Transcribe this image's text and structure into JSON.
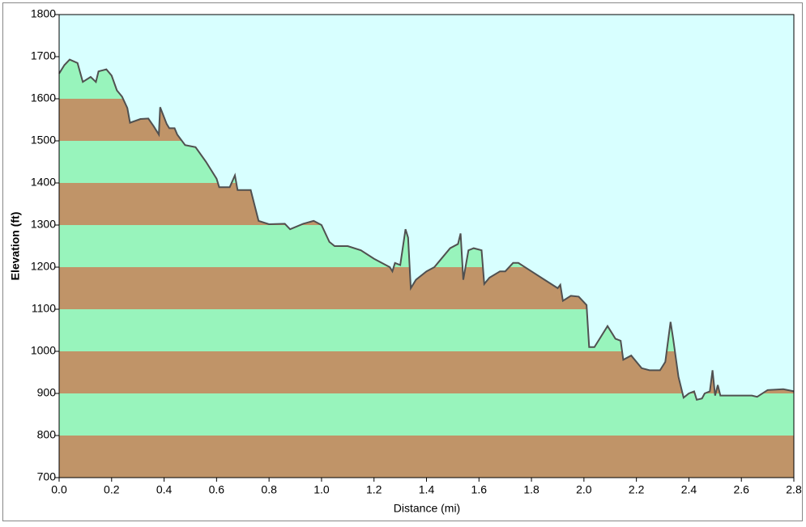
{
  "chart_data": {
    "type": "elevation-profile",
    "x_label": "Distance   (mi)",
    "y_label": "Elevation (ft)",
    "x": [
      0,
      0.02,
      0.04,
      0.07,
      0.09,
      0.12,
      0.14,
      0.15,
      0.18,
      0.2,
      0.22,
      0.24,
      0.26,
      0.27,
      0.31,
      0.34,
      0.36,
      0.38,
      0.385,
      0.41,
      0.42,
      0.44,
      0.45,
      0.48,
      0.52,
      0.56,
      0.6,
      0.61,
      0.65,
      0.67,
      0.68,
      0.73,
      0.76,
      0.8,
      0.86,
      0.88,
      0.93,
      0.97,
      1,
      1.03,
      1.05,
      1.1,
      1.15,
      1.2,
      1.26,
      1.27,
      1.28,
      1.3,
      1.32,
      1.33,
      1.34,
      1.36,
      1.4,
      1.43,
      1.45,
      1.49,
      1.52,
      1.53,
      1.54,
      1.56,
      1.58,
      1.61,
      1.62,
      1.64,
      1.68,
      1.7,
      1.73,
      1.75,
      1.8,
      1.85,
      1.9,
      1.91,
      1.92,
      1.95,
      1.98,
      2.01,
      2.02,
      2.04,
      2.06,
      2.09,
      2.11,
      2.12,
      2.14,
      2.15,
      2.18,
      2.22,
      2.25,
      2.29,
      2.31,
      2.33,
      2.34,
      2.36,
      2.38,
      2.4,
      2.42,
      2.43,
      2.45,
      2.46,
      2.48,
      2.49,
      2.5,
      2.51,
      2.52,
      2.6,
      2.64,
      2.66,
      2.7,
      2.76,
      2.8
    ],
    "values": [
      1660,
      1680,
      1693,
      1685,
      1640,
      1652,
      1640,
      1665,
      1670,
      1655,
      1620,
      1605,
      1578,
      1543,
      1552,
      1553,
      1535,
      1515,
      1580,
      1540,
      1530,
      1530,
      1515,
      1490,
      1485,
      1450,
      1410,
      1390,
      1390,
      1418,
      1383,
      1383,
      1310,
      1302,
      1303,
      1290,
      1303,
      1310,
      1300,
      1260,
      1250,
      1250,
      1240,
      1220,
      1200,
      1190,
      1210,
      1205,
      1290,
      1270,
      1150,
      1170,
      1190,
      1200,
      1215,
      1245,
      1255,
      1280,
      1170,
      1240,
      1245,
      1240,
      1160,
      1175,
      1190,
      1190,
      1210,
      1210,
      1190,
      1170,
      1150,
      1158,
      1120,
      1132,
      1130,
      1110,
      1010,
      1010,
      1030,
      1060,
      1040,
      1030,
      1025,
      980,
      990,
      960,
      955,
      955,
      975,
      1070,
      1030,
      940,
      890,
      900,
      905,
      885,
      888,
      900,
      905,
      955,
      895,
      920,
      895,
      895,
      895,
      892,
      908,
      910,
      905
    ],
    "xlim": [
      0,
      2.8
    ],
    "xticks": [
      {
        "value": 0,
        "label": "0.0"
      },
      0.2,
      0.4,
      0.6,
      0.8,
      {
        "value": 1,
        "label": "1.0"
      },
      1.2,
      1.4,
      1.6,
      1.8,
      {
        "value": 2,
        "label": "2.0"
      },
      2.2,
      2.4,
      2.6,
      2.8
    ],
    "ylim": [
      700,
      1800
    ],
    "yticks": [
      700,
      800,
      900,
      1000,
      1100,
      1200,
      1300,
      1400,
      1500,
      1600,
      1700,
      1800
    ],
    "band_colors": [
      "#c09468",
      "#98f4bc"
    ],
    "background": "#d8ffff",
    "color": "#505050"
  }
}
